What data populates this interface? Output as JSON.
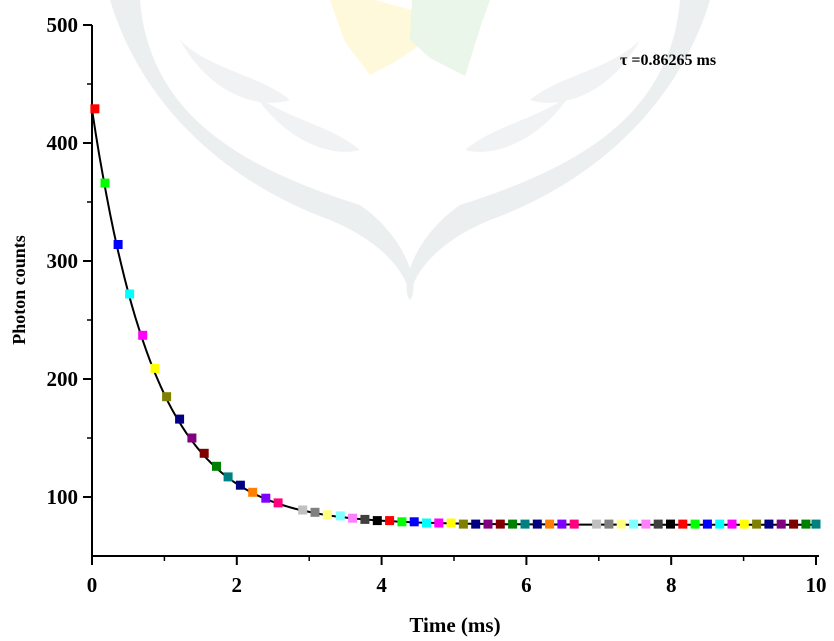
{
  "chart_data": {
    "type": "scatter",
    "xlabel": "Time (ms)",
    "ylabel": "Photon counts",
    "annotation": "τ =0.86265 ms",
    "xlim": [
      0,
      10
    ],
    "ylim": [
      50,
      500
    ],
    "xticks": [
      0,
      2,
      4,
      6,
      8,
      10
    ],
    "yticks": [
      100,
      200,
      300,
      400,
      500
    ],
    "xtick_labels": [
      "0",
      "2",
      "4",
      "6",
      "8",
      "10"
    ],
    "ytick_labels": [
      "100",
      "200",
      "300",
      "400",
      "500"
    ],
    "grid": false,
    "legend": "none",
    "fit": {
      "type": "exponential decay",
      "tau": 0.86265,
      "y0": 76.5,
      "A": 352,
      "color": "#000000"
    },
    "points": [
      {
        "x": 0.04,
        "y": 429
      },
      {
        "x": 0.18,
        "y": 366
      },
      {
        "x": 0.36,
        "y": 314
      },
      {
        "x": 0.52,
        "y": 272
      },
      {
        "x": 0.7,
        "y": 237
      },
      {
        "x": 0.87,
        "y": 209
      },
      {
        "x": 1.03,
        "y": 185
      },
      {
        "x": 1.21,
        "y": 166
      },
      {
        "x": 1.38,
        "y": 150
      },
      {
        "x": 1.55,
        "y": 137
      },
      {
        "x": 1.72,
        "y": 126
      },
      {
        "x": 1.88,
        "y": 117
      },
      {
        "x": 2.05,
        "y": 110
      },
      {
        "x": 2.22,
        "y": 104
      },
      {
        "x": 2.4,
        "y": 99
      },
      {
        "x": 2.57,
        "y": 95
      },
      {
        "x": 2.91,
        "y": 89
      },
      {
        "x": 3.08,
        "y": 87
      },
      {
        "x": 3.25,
        "y": 85
      },
      {
        "x": 3.43,
        "y": 84
      },
      {
        "x": 3.6,
        "y": 82
      },
      {
        "x": 3.77,
        "y": 81
      },
      {
        "x": 3.94,
        "y": 80
      },
      {
        "x": 4.11,
        "y": 80
      },
      {
        "x": 4.28,
        "y": 79
      },
      {
        "x": 4.45,
        "y": 79
      },
      {
        "x": 4.62,
        "y": 78
      },
      {
        "x": 4.79,
        "y": 78
      },
      {
        "x": 4.96,
        "y": 78
      },
      {
        "x": 5.13,
        "y": 77
      },
      {
        "x": 5.3,
        "y": 77
      },
      {
        "x": 5.47,
        "y": 77
      },
      {
        "x": 5.64,
        "y": 77
      },
      {
        "x": 5.81,
        "y": 77
      },
      {
        "x": 5.98,
        "y": 77
      },
      {
        "x": 6.15,
        "y": 77
      },
      {
        "x": 6.32,
        "y": 77
      },
      {
        "x": 6.49,
        "y": 77
      },
      {
        "x": 6.66,
        "y": 77
      },
      {
        "x": 6.97,
        "y": 77
      },
      {
        "x": 7.14,
        "y": 77
      },
      {
        "x": 7.31,
        "y": 77
      },
      {
        "x": 7.48,
        "y": 77
      },
      {
        "x": 7.65,
        "y": 77
      },
      {
        "x": 7.82,
        "y": 77
      },
      {
        "x": 7.99,
        "y": 77
      },
      {
        "x": 8.16,
        "y": 77
      },
      {
        "x": 8.33,
        "y": 77
      },
      {
        "x": 8.5,
        "y": 77
      },
      {
        "x": 8.67,
        "y": 77
      },
      {
        "x": 8.84,
        "y": 77
      },
      {
        "x": 9.01,
        "y": 77
      },
      {
        "x": 9.18,
        "y": 77
      },
      {
        "x": 9.35,
        "y": 77
      },
      {
        "x": 9.52,
        "y": 77
      },
      {
        "x": 9.69,
        "y": 77
      },
      {
        "x": 9.86,
        "y": 77
      },
      {
        "x": 10.0,
        "y": 77
      }
    ],
    "marker_colors": [
      "#ff0000",
      "#00ff00",
      "#0000ff",
      "#00ffff",
      "#ff00ff",
      "#ffff00",
      "#808000",
      "#000080",
      "#800080",
      "#800000",
      "#008000",
      "#008080",
      "#000080",
      "#ff8000",
      "#8000ff",
      "#ff0080",
      "#c0c0c0",
      "#808080",
      "#ffff80",
      "#80ffff",
      "#ff80ff",
      "#404040",
      "#000000"
    ]
  }
}
